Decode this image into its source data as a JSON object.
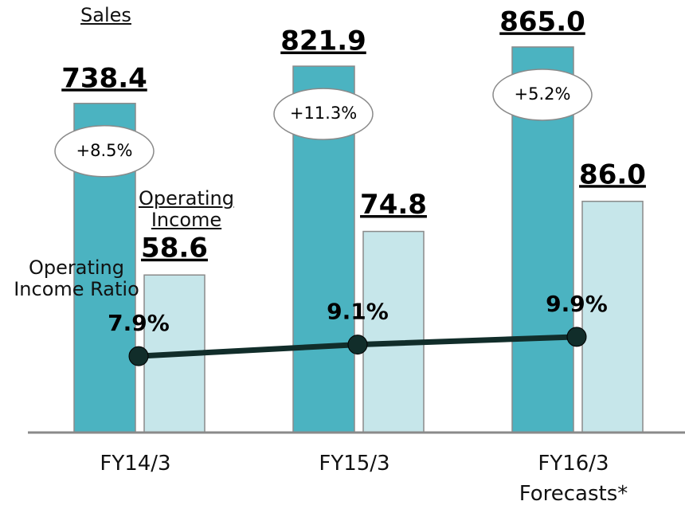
{
  "chart_data": {
    "type": "bar",
    "categories": [
      "FY14/3",
      "FY15/3",
      "FY16/3\nForecasts*"
    ],
    "series": [
      {
        "name": "Sales",
        "color": "#4bb3c1",
        "values": [
          738.4,
          821.9,
          865
        ],
        "value_labels": [
          "738.4",
          "821.9",
          "865.0"
        ],
        "axis": "y"
      },
      {
        "name": "Operating Income",
        "color": "#c6e6ea",
        "values": [
          58.6,
          74.8,
          86
        ],
        "value_labels": [
          "58.6",
          "74.8",
          "86.0"
        ],
        "axis": "y2"
      },
      {
        "name": "Operating Income Ratio",
        "type": "line",
        "color": "#112d2a",
        "values": [
          7.9,
          9.1,
          9.9
        ],
        "value_labels": [
          "7.9%",
          "9.1%",
          "9.9%"
        ],
        "axis": "y3"
      }
    ],
    "growth_labels": [
      "+8.5%",
      "+11.3%",
      "+5.2%"
    ],
    "ylim": [
      0,
      965
    ],
    "y2lim": [
      0,
      160
    ],
    "y3lim": [
      0,
      44.5
    ]
  }
}
